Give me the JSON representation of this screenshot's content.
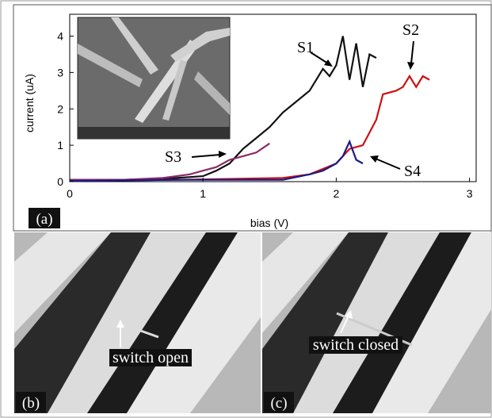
{
  "chart_data": {
    "type": "line",
    "xlabel": "bias (V)",
    "ylabel": "current (uA)",
    "xlim": [
      0,
      3.05
    ],
    "ylim": [
      0,
      4.6
    ],
    "xticks": [
      0,
      1,
      2,
      3
    ],
    "yticks": [
      0,
      1,
      2,
      3,
      4
    ],
    "series": [
      {
        "name": "S1",
        "color": "#111111",
        "x": [
          0,
          0.4,
          0.8,
          1.0,
          1.1,
          1.2,
          1.3,
          1.4,
          1.5,
          1.6,
          1.7,
          1.8,
          1.9,
          1.95,
          2.0,
          2.05,
          2.1,
          2.15,
          2.2,
          2.25,
          2.3
        ],
        "values": [
          0.05,
          0.05,
          0.1,
          0.15,
          0.3,
          0.5,
          0.9,
          1.2,
          1.5,
          1.9,
          2.2,
          2.5,
          3.1,
          2.9,
          3.2,
          4.0,
          2.8,
          3.8,
          2.6,
          3.5,
          3.4
        ]
      },
      {
        "name": "S2",
        "color": "#cc1111",
        "x": [
          0,
          0.8,
          1.6,
          1.8,
          2.0,
          2.1,
          2.2,
          2.3,
          2.35,
          2.45,
          2.5,
          2.55,
          2.6,
          2.65,
          2.7
        ],
        "values": [
          0.02,
          0.05,
          0.1,
          0.2,
          0.5,
          0.9,
          1.0,
          1.7,
          2.4,
          2.5,
          2.6,
          2.9,
          2.6,
          2.9,
          2.8
        ]
      },
      {
        "name": "S3",
        "color": "#8a2a6a",
        "x": [
          0,
          0.4,
          0.7,
          0.9,
          1.0,
          1.1,
          1.2,
          1.3,
          1.4,
          1.5
        ],
        "values": [
          0.05,
          0.05,
          0.1,
          0.2,
          0.3,
          0.4,
          0.6,
          0.7,
          0.8,
          1.05
        ]
      },
      {
        "name": "S4",
        "color": "#1a1a88",
        "x": [
          0,
          0.8,
          1.6,
          1.8,
          1.9,
          2.0,
          2.05,
          2.1,
          2.15,
          2.2
        ],
        "values": [
          0.02,
          0.05,
          0.05,
          0.2,
          0.3,
          0.5,
          0.7,
          1.1,
          0.6,
          0.5
        ]
      }
    ]
  },
  "panels": {
    "a": "(a)",
    "b": "(b)",
    "c": "(c)"
  },
  "callouts": {
    "open": "switch open",
    "closed": "switch closed"
  }
}
